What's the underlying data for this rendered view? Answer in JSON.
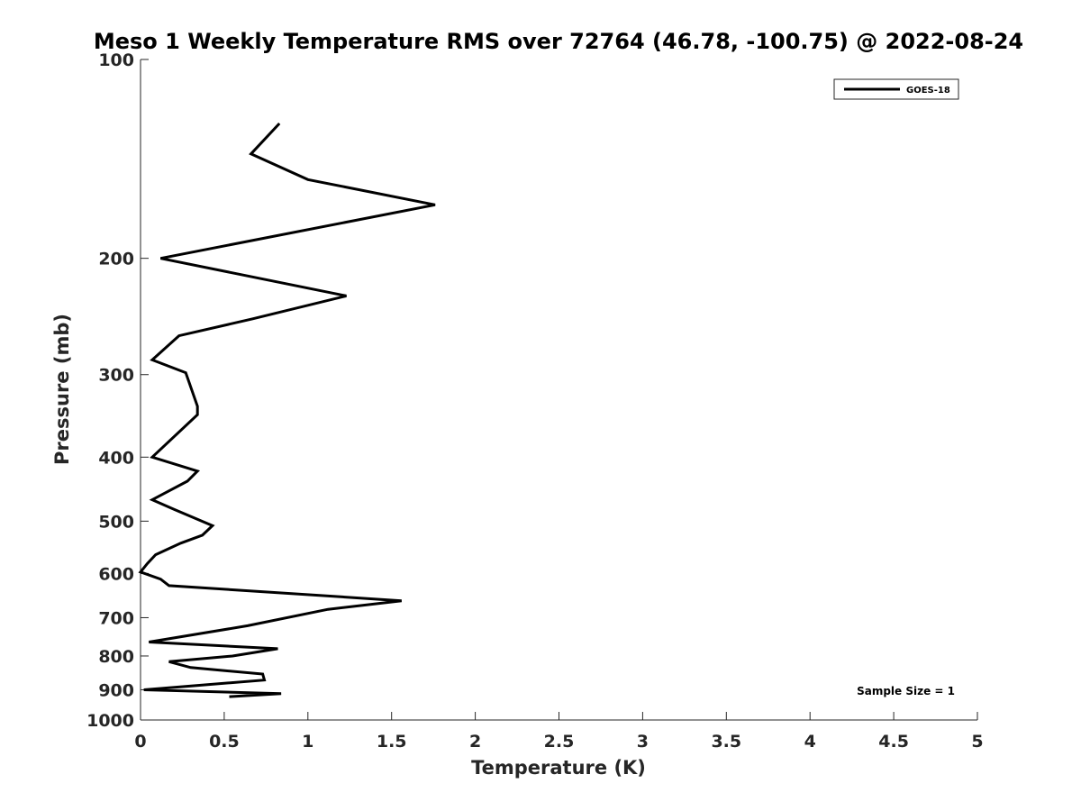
{
  "chart_data": {
    "type": "line",
    "title": "Meso 1 Weekly Temperature RMS over 72764 (46.78, -100.75) @ 2022-08-24",
    "xlabel": "Temperature (K)",
    "ylabel": "Pressure (mb)",
    "xlim": [
      0,
      5
    ],
    "ylim": [
      100,
      1000
    ],
    "y_scale": "log",
    "y_reversed": true,
    "grid": false,
    "legend_position": "top-right",
    "x_ticks": [
      0,
      0.5,
      1,
      1.5,
      2,
      2.5,
      3,
      3.5,
      4,
      4.5,
      5
    ],
    "x_tick_labels": [
      "0",
      "0.5",
      "1",
      "1.5",
      "2",
      "2.5",
      "3",
      "3.5",
      "4",
      "4.5",
      "5"
    ],
    "y_ticks": [
      100,
      200,
      300,
      400,
      500,
      600,
      700,
      800,
      900,
      1000
    ],
    "y_tick_labels": [
      "100",
      "200",
      "300",
      "400",
      "500",
      "600",
      "700",
      "800",
      "900",
      "1000"
    ],
    "series": [
      {
        "name": "GOES-18",
        "color": "#000000",
        "points": [
          [
            0.83,
            125
          ],
          [
            0.66,
            139
          ],
          [
            1.0,
            152
          ],
          [
            1.76,
            166
          ],
          [
            0.12,
            200
          ],
          [
            1.23,
            228
          ],
          [
            0.67,
            247
          ],
          [
            0.23,
            262
          ],
          [
            0.07,
            285
          ],
          [
            0.27,
            298
          ],
          [
            0.34,
            335
          ],
          [
            0.34,
            345
          ],
          [
            0.07,
            400
          ],
          [
            0.34,
            420
          ],
          [
            0.28,
            435
          ],
          [
            0.07,
            464
          ],
          [
            0.2,
            480
          ],
          [
            0.43,
            508
          ],
          [
            0.37,
            525
          ],
          [
            0.24,
            540
          ],
          [
            0.09,
            562
          ],
          [
            0.04,
            580
          ],
          [
            0.0,
            597
          ],
          [
            0.12,
            612
          ],
          [
            0.17,
            626
          ],
          [
            1.56,
            660
          ],
          [
            1.12,
            680
          ],
          [
            0.64,
            720
          ],
          [
            0.05,
            762
          ],
          [
            0.82,
            780
          ],
          [
            0.55,
            800
          ],
          [
            0.17,
            816
          ],
          [
            0.3,
            833
          ],
          [
            0.73,
            852
          ],
          [
            0.74,
            870
          ],
          [
            0.02,
            900
          ],
          [
            0.84,
            912
          ],
          [
            0.53,
            922
          ]
        ]
      }
    ],
    "annotation": "Sample Size = 1"
  }
}
